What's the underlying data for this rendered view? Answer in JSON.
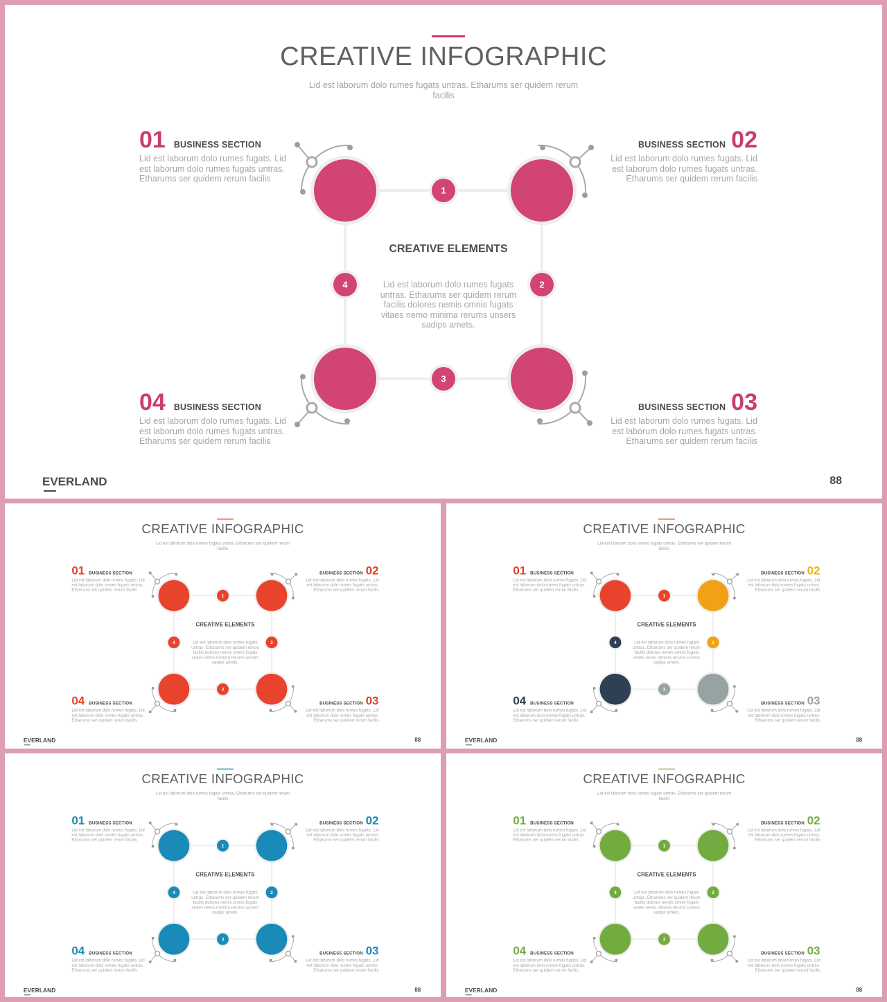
{
  "slides": [
    {
      "title": "CREATIVE INFOGRAPHIC",
      "subtitle": "Lid est laborum dolo rumes fugats untras. Etharums ser quidem rerum facilis",
      "accent": "#d6356a",
      "num_colors": {
        "01": "#c93e6a",
        "02": "#c93e6a",
        "03": "#c93e6a",
        "04": "#c93e6a"
      },
      "circle_colors": {
        "tl": "#d24473",
        "tr": "#d24473",
        "br": "#d24473",
        "bl": "#d24473"
      },
      "dot_colors": {
        "1": "#d24473",
        "2": "#d24473",
        "3": "#d24473",
        "4": "#d24473"
      },
      "sections": [
        {
          "num": "01",
          "label": "BUSINESS SECTION",
          "text": "Lid est laborum dolo rumes fugats. Lid est laborum dolo rumes fugats untras. Etharums ser quidem rerum facilis"
        },
        {
          "num": "02",
          "label": "BUSINESS SECTION",
          "text": "Lid est laborum dolo rumes fugats. Lid est laborum dolo rumes fugats untras. Etharums ser quidem rerum facilis"
        },
        {
          "num": "03",
          "label": "BUSINESS SECTION",
          "text": "Lid est laborum dolo rumes fugats. Lid est laborum dolo rumes fugats untras. Etharums ser quidem rerum facilis"
        },
        {
          "num": "04",
          "label": "BUSINESS SECTION",
          "text": "Lid est laborum dolo rumes fugats. Lid est laborum dolo rumes fugats untras. Etharums ser quidem rerum facilis"
        }
      ],
      "center_title": "CREATIVE ELEMENTS",
      "center_text": "Lid est laborum dolo rumes fugats untras. Etharums ser quidem rerum facilis dolores nemis omnis fugats vitaes nemo minima rerums unsers sadips amets.",
      "step_labels": [
        "1",
        "2",
        "3",
        "4"
      ],
      "brand": "EVERLAND",
      "page": "88"
    },
    {
      "title": "CREATIVE INFOGRAPHIC",
      "subtitle": "Lid est laborum dolo rumes fugats untras. Etharums ser quidem rerum facilis",
      "accent": "#e8442d",
      "num_colors": {
        "01": "#e0432b",
        "02": "#e0432b",
        "03": "#e0432b",
        "04": "#e0432b"
      },
      "circle_colors": {
        "tl": "#e8442d",
        "tr": "#e8442d",
        "br": "#e8442d",
        "bl": "#e8442d"
      },
      "dot_colors": {
        "1": "#e8442d",
        "2": "#e8442d",
        "3": "#e8442d",
        "4": "#e8442d"
      },
      "sections": [
        {
          "num": "01",
          "label": "BUSINESS SECTION",
          "text": "Lid est laborum dolo rumes fugats. Lid est laborum dolo rumes fugats untras. Etharums ser quidem rerum facilis"
        },
        {
          "num": "02",
          "label": "BUSINESS SECTION",
          "text": "Lid est laborum dolo rumes fugats. Lid est laborum dolo rumes fugats untras. Etharums ser quidem rerum facilis"
        },
        {
          "num": "03",
          "label": "BUSINESS SECTION",
          "text": "Lid est laborum dolo rumes fugats. Lid est laborum dolo rumes fugats untras. Etharums ser quidem rerum facilis"
        },
        {
          "num": "04",
          "label": "BUSINESS SECTION",
          "text": "Lid est laborum dolo rumes fugats. Lid est laborum dolo rumes fugats untras. Etharums ser quidem rerum facilis"
        }
      ],
      "center_title": "CREATIVE ELEMENTS",
      "center_text": "Lid est laborum dolo rumes fugats untras. Etharums ser quidem rerum facilis dolores nemis omnis fugats vitaes nemo minima rerums unsers sadips amets.",
      "step_labels": [
        "1",
        "2",
        "3",
        "4"
      ],
      "brand": "EVERLAND",
      "page": "88"
    },
    {
      "title": "CREATIVE INFOGRAPHIC",
      "subtitle": "Lid est laborum dolo rumes fugats untras. Etharums ser quidem rerum facilis",
      "accent": "#e8442d",
      "num_colors": {
        "01": "#e0432b",
        "02": "#e9b31c",
        "03": "#9aa3a3",
        "04": "#2f3f54"
      },
      "circle_colors": {
        "tl": "#e8442d",
        "tr": "#f2a016",
        "br": "#97a3a3",
        "bl": "#2f3f54"
      },
      "dot_colors": {
        "1": "#e8442d",
        "2": "#f2a016",
        "3": "#97a3a3",
        "4": "#2f3f54"
      },
      "sections": [
        {
          "num": "01",
          "label": "BUSINESS SECTION",
          "text": "Lid est laborum dolo rumes fugats. Lid est laborum dolo rumes fugats untras. Etharums ser quidem rerum facilis"
        },
        {
          "num": "02",
          "label": "BUSINESS SECTION",
          "text": "Lid est laborum dolo rumes fugats. Lid est laborum dolo rumes fugats untras. Etharums ser quidem rerum facilis"
        },
        {
          "num": "03",
          "label": "BUSINESS SECTION",
          "text": "Lid est laborum dolo rumes fugats. Lid est laborum dolo rumes fugats untras. Etharums ser quidem rerum facilis"
        },
        {
          "num": "04",
          "label": "BUSINESS SECTION",
          "text": "Lid est laborum dolo rumes fugats. Lid est laborum dolo rumes fugats untras. Etharums ser quidem rerum facilis"
        }
      ],
      "center_title": "CREATIVE ELEMENTS",
      "center_text": "Lid est laborum dolo rumes fugats untras. Etharums ser quidem rerum facilis dolores nemis omnis fugats vitaes nemo minima rerums unsers sadips amets.",
      "step_labels": [
        "1",
        "2",
        "3",
        "4"
      ],
      "brand": "EVERLAND",
      "page": "88"
    },
    {
      "title": "CREATIVE INFOGRAPHIC",
      "subtitle": "Lid est laborum dolo rumes fugats untras. Etharums ser quidem rerum facilis",
      "accent": "#1a8bb8",
      "num_colors": {
        "01": "#1a8bb8",
        "02": "#1a8bb8",
        "03": "#1a8bb8",
        "04": "#1a8bb8"
      },
      "circle_colors": {
        "tl": "#1a8bb8",
        "tr": "#1a8bb8",
        "br": "#1a8bb8",
        "bl": "#1a8bb8"
      },
      "dot_colors": {
        "1": "#1a8bb8",
        "2": "#1a8bb8",
        "3": "#1a8bb8",
        "4": "#1a8bb8"
      },
      "sections": [
        {
          "num": "01",
          "label": "BUSINESS SECTION",
          "text": "Lid est laborum dolo rumes fugats. Lid est laborum dolo rumes fugats untras. Etharums ser quidem rerum facilis"
        },
        {
          "num": "02",
          "label": "BUSINESS SECTION",
          "text": "Lid est laborum dolo rumes fugats. Lid est laborum dolo rumes fugats untras. Etharums ser quidem rerum facilis"
        },
        {
          "num": "03",
          "label": "BUSINESS SECTION",
          "text": "Lid est laborum dolo rumes fugats. Lid est laborum dolo rumes fugats untras. Etharums ser quidem rerum facilis"
        },
        {
          "num": "04",
          "label": "BUSINESS SECTION",
          "text": "Lid est laborum dolo rumes fugats. Lid est laborum dolo rumes fugats untras. Etharums ser quidem rerum facilis"
        }
      ],
      "center_title": "CREATIVE ELEMENTS",
      "center_text": "Lid est laborum dolo rumes fugats untras. Etharums ser quidem rerum facilis dolores nemis omnis fugats vitaes nemo minima rerums unsers sadips amets.",
      "step_labels": [
        "1",
        "2",
        "3",
        "4"
      ],
      "brand": "EVERLAND",
      "page": "88"
    },
    {
      "title": "CREATIVE INFOGRAPHIC",
      "subtitle": "Lid est laborum dolo rumes fugats untras. Etharums ser quidem rerum facilis",
      "accent": "#8eb83f",
      "num_colors": {
        "01": "#72ac41",
        "02": "#72ac41",
        "03": "#72ac41",
        "04": "#72ac41"
      },
      "circle_colors": {
        "tl": "#72ac41",
        "tr": "#72ac41",
        "br": "#72ac41",
        "bl": "#72ac41"
      },
      "dot_colors": {
        "1": "#72ac41",
        "2": "#72ac41",
        "3": "#72ac41",
        "4": "#72ac41"
      },
      "sections": [
        {
          "num": "01",
          "label": "BUSINESS SECTION",
          "text": "Lid est laborum dolo rumes fugats. Lid est laborum dolo rumes fugats untras. Etharums ser quidem rerum facilis"
        },
        {
          "num": "02",
          "label": "BUSINESS SECTION",
          "text": "Lid est laborum dolo rumes fugats. Lid est laborum dolo rumes fugats untras. Etharums ser quidem rerum facilis"
        },
        {
          "num": "03",
          "label": "BUSINESS SECTION",
          "text": "Lid est laborum dolo rumes fugats. Lid est laborum dolo rumes fugats untras. Etharums ser quidem rerum facilis"
        },
        {
          "num": "04",
          "label": "BUSINESS SECTION",
          "text": "Lid est laborum dolo rumes fugats. Lid est laborum dolo rumes fugats untras. Etharums ser quidem rerum facilis"
        }
      ],
      "center_title": "CREATIVE ELEMENTS",
      "center_text": "Lid est laborum dolo rumes fugats untras. Etharums ser quidem rerum facilis dolores nemis omnis fugats vitaes nemo minima rerums unsers sadips amets.",
      "step_labels": [
        "1",
        "2",
        "3",
        "4"
      ],
      "brand": "EVERLAND",
      "page": "88"
    }
  ]
}
